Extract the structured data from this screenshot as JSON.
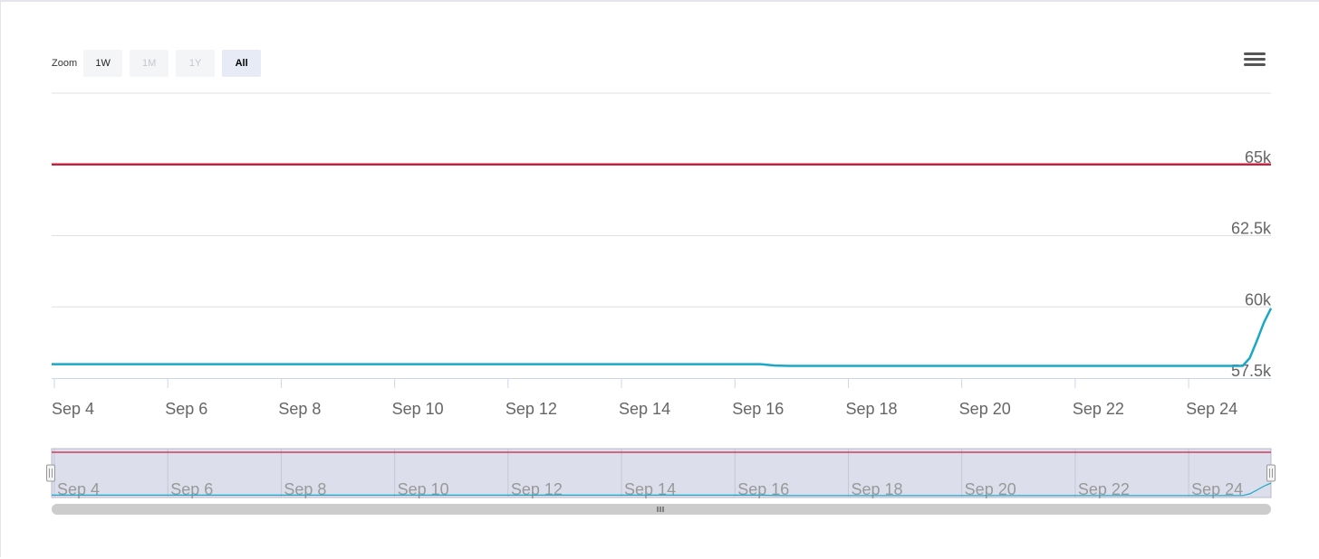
{
  "toolbar": {
    "zoom_label": "Zoom",
    "buttons": [
      {
        "label": "1W",
        "state": "normal"
      },
      {
        "label": "1M",
        "state": "disabled"
      },
      {
        "label": "1Y",
        "state": "disabled"
      },
      {
        "label": "All",
        "state": "selected"
      }
    ]
  },
  "menu_icon": "hamburger-menu-icon",
  "colors": {
    "line_series": "#1aa8c9",
    "threshold_series": "#c8203f",
    "navigator_mask": "#dcdeeb",
    "grid": "#e0e0e0"
  },
  "chart_data": {
    "type": "line",
    "title": "",
    "xlabel": "",
    "ylabel": "",
    "x_range": [
      "2023-09-04",
      "2023-09-25T12:00"
    ],
    "ylim": [
      57500,
      67500
    ],
    "y_ticks": [
      {
        "value": 57500,
        "label": "57.5k"
      },
      {
        "value": 60000,
        "label": "60k"
      },
      {
        "value": 62500,
        "label": "62.5k"
      },
      {
        "value": 65000,
        "label": "65k"
      }
    ],
    "x_ticks": [
      {
        "date": "2023-09-04",
        "label": "Sep 4"
      },
      {
        "date": "2023-09-06",
        "label": "Sep 6"
      },
      {
        "date": "2023-09-08",
        "label": "Sep 8"
      },
      {
        "date": "2023-09-10",
        "label": "Sep 10"
      },
      {
        "date": "2023-09-12",
        "label": "Sep 12"
      },
      {
        "date": "2023-09-14",
        "label": "Sep 14"
      },
      {
        "date": "2023-09-16",
        "label": "Sep 16"
      },
      {
        "date": "2023-09-18",
        "label": "Sep 18"
      },
      {
        "date": "2023-09-20",
        "label": "Sep 20"
      },
      {
        "date": "2023-09-22",
        "label": "Sep 22"
      },
      {
        "date": "2023-09-24",
        "label": "Sep 24"
      }
    ],
    "grid": true,
    "legend": "none",
    "series": [
      {
        "color": "#c8203f",
        "points": [
          {
            "x": "2023-09-04",
            "y": 65000
          },
          {
            "x": "2023-09-25T12:00",
            "y": 65000
          }
        ]
      },
      {
        "color": "#1aa8c9",
        "points": [
          {
            "x": "2023-09-04",
            "y": 57990
          },
          {
            "x": "2023-09-16T12:00",
            "y": 57990
          },
          {
            "x": "2023-09-16T18:00",
            "y": 57940
          },
          {
            "x": "2023-09-17",
            "y": 57930
          },
          {
            "x": "2023-09-25",
            "y": 57930
          },
          {
            "x": "2023-09-25T03:00",
            "y": 58200
          },
          {
            "x": "2023-09-25T06:00",
            "y": 58800
          },
          {
            "x": "2023-09-25T09:00",
            "y": 59450
          },
          {
            "x": "2023-09-25T12:00",
            "y": 59950
          }
        ]
      }
    ],
    "navigator": {
      "range": [
        "2023-09-04",
        "2023-09-25T12:00"
      ]
    }
  }
}
